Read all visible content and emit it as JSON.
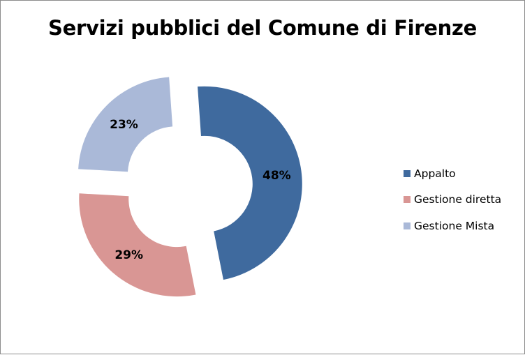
{
  "chart_data": {
    "type": "pie",
    "subtype": "donut-exploded",
    "title": "Servizi pubblici del Comune di Firenze",
    "categories": [
      "Appalto",
      "Gestione diretta",
      "Gestione Mista"
    ],
    "values": [
      48,
      29,
      23
    ],
    "labels": [
      "48%",
      "29%",
      "23%"
    ],
    "colors": [
      "#3F6A9E",
      "#D99694",
      "#AAB9D8"
    ],
    "legend_position": "right"
  }
}
